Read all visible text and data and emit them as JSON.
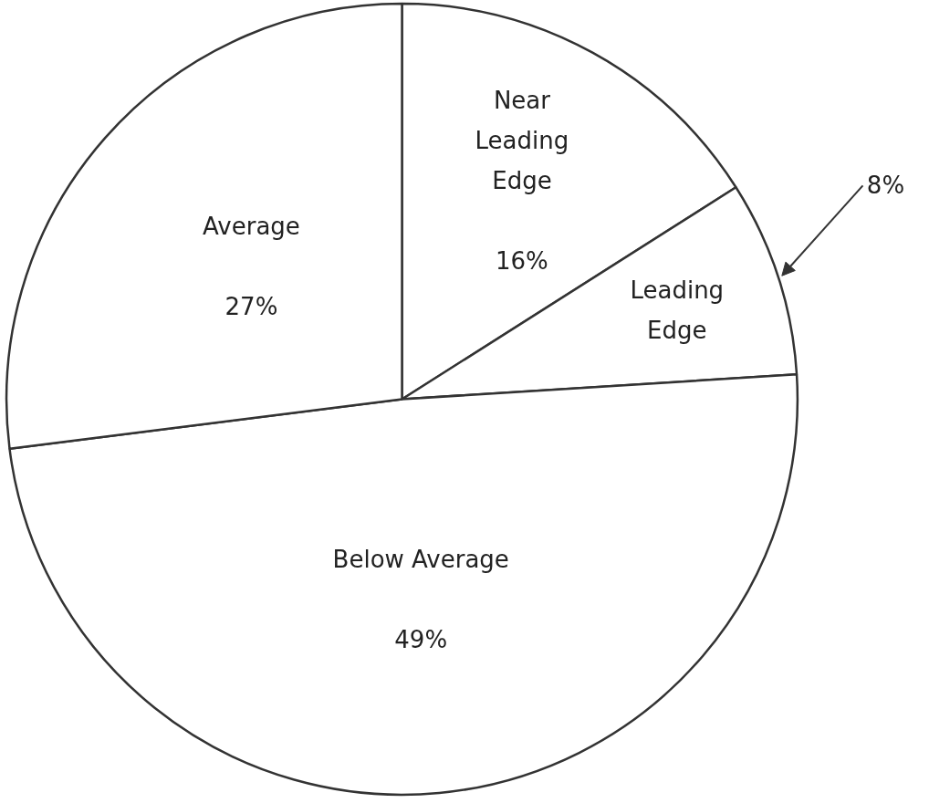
{
  "chart_data": {
    "type": "pie",
    "categories": [
      "Near Leading Edge",
      "Leading Edge",
      "Below Average",
      "Average"
    ],
    "values": [
      16,
      8,
      49,
      27
    ],
    "colors": [
      "#ffffff",
      "#ffffff",
      "#ffffff",
      "#ffffff"
    ],
    "value_labels": [
      "16%",
      "8%",
      "49%",
      "27%"
    ]
  }
}
